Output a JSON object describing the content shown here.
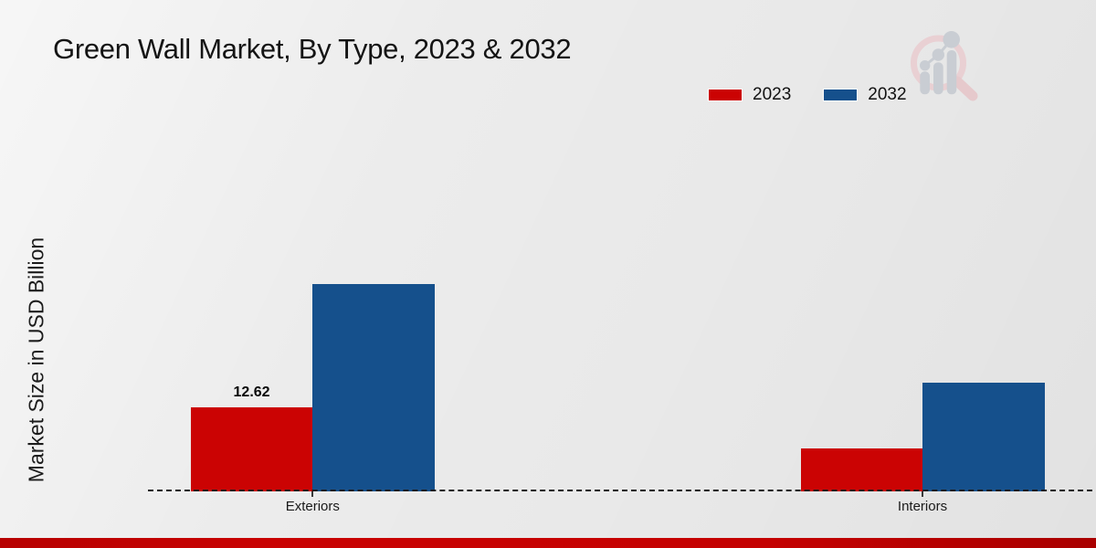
{
  "header": {
    "title": "Green Wall Market, By Type, 2023 & 2032"
  },
  "axes": {
    "y_label": "Market Size in USD Billion"
  },
  "chart_data": {
    "type": "bar",
    "title": "Green Wall Market, By Type, 2023 & 2032",
    "xlabel": "",
    "ylabel": "Market Size in USD Billion",
    "categories": [
      "Exteriors",
      "Interiors"
    ],
    "series": [
      {
        "name": "2023",
        "color": "#cb0303",
        "values": [
          12.62,
          6.5
        ],
        "value_labels": [
          "12.62",
          null
        ]
      },
      {
        "name": "2032",
        "color": "#15508c",
        "values": [
          31.1,
          16.3
        ],
        "value_labels": [
          null,
          null
        ]
      }
    ],
    "ylim": [
      0,
      35
    ],
    "grid": false,
    "legend_position": "top-right",
    "baseline_style": "dashed",
    "notes": "Only the 2023 Exteriors bar carries a printed data label (12.62); other values estimated from bar heights."
  },
  "branding": {
    "logo_name": "magnifier-bar-chart-watermark",
    "bottom_bar_color": "#c40101",
    "logo_ring_color": "#e9d0d3",
    "logo_bar_color": "#c9cdd3"
  }
}
